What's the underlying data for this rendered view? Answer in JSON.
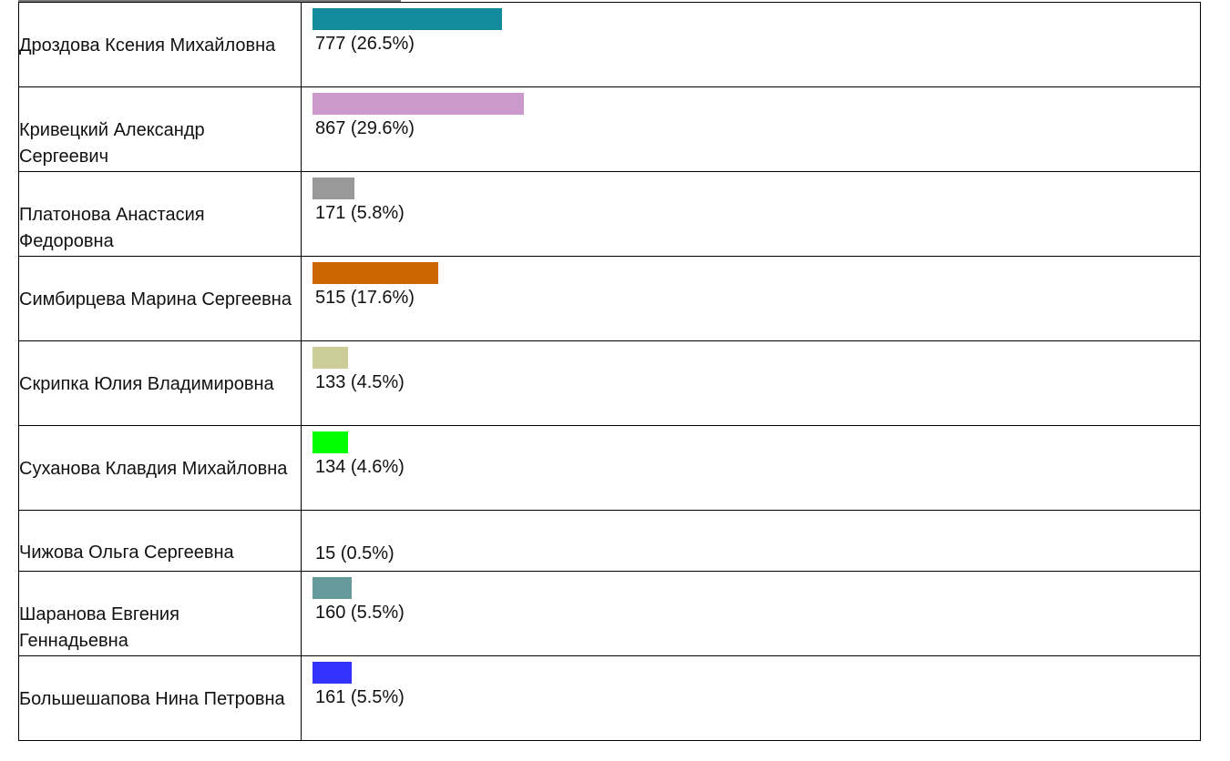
{
  "chart_data": {
    "type": "bar",
    "orientation": "horizontal",
    "categories": [
      "Дроздова Ксения Михайловна",
      "Кривецкий Александр Сергеевич",
      "Платонова Анастасия Федоровна",
      "Симбирцева Марина Сергеевна",
      "Скрипка Юлия Владимировна",
      "Суханова Клавдия Михайловна",
      "Чижова Ольга Сергеевна",
      "Шаранова Евгения Геннадьевна",
      "Большешапова Нина Петровна"
    ],
    "values": [
      777,
      867,
      171,
      515,
      133,
      134,
      15,
      160,
      161
    ],
    "percents": [
      26.5,
      29.6,
      5.8,
      17.6,
      4.5,
      4.6,
      0.5,
      5.5,
      5.5
    ],
    "labels": [
      "777 (26.5%)",
      "867 (29.6%)",
      "171 (5.8%)",
      "515 (17.6%)",
      "133 (4.5%)",
      "134 (4.6%)",
      "15 (0.5%)",
      "160 (5.5%)",
      "161 (5.5%)"
    ],
    "colors": [
      "#148a9e",
      "#cc99cc",
      "#999999",
      "#cc6600",
      "#cccc99",
      "#00ff00",
      "#ffffff",
      "#669999",
      "#3333ff"
    ],
    "grid": false,
    "legend": "none"
  }
}
